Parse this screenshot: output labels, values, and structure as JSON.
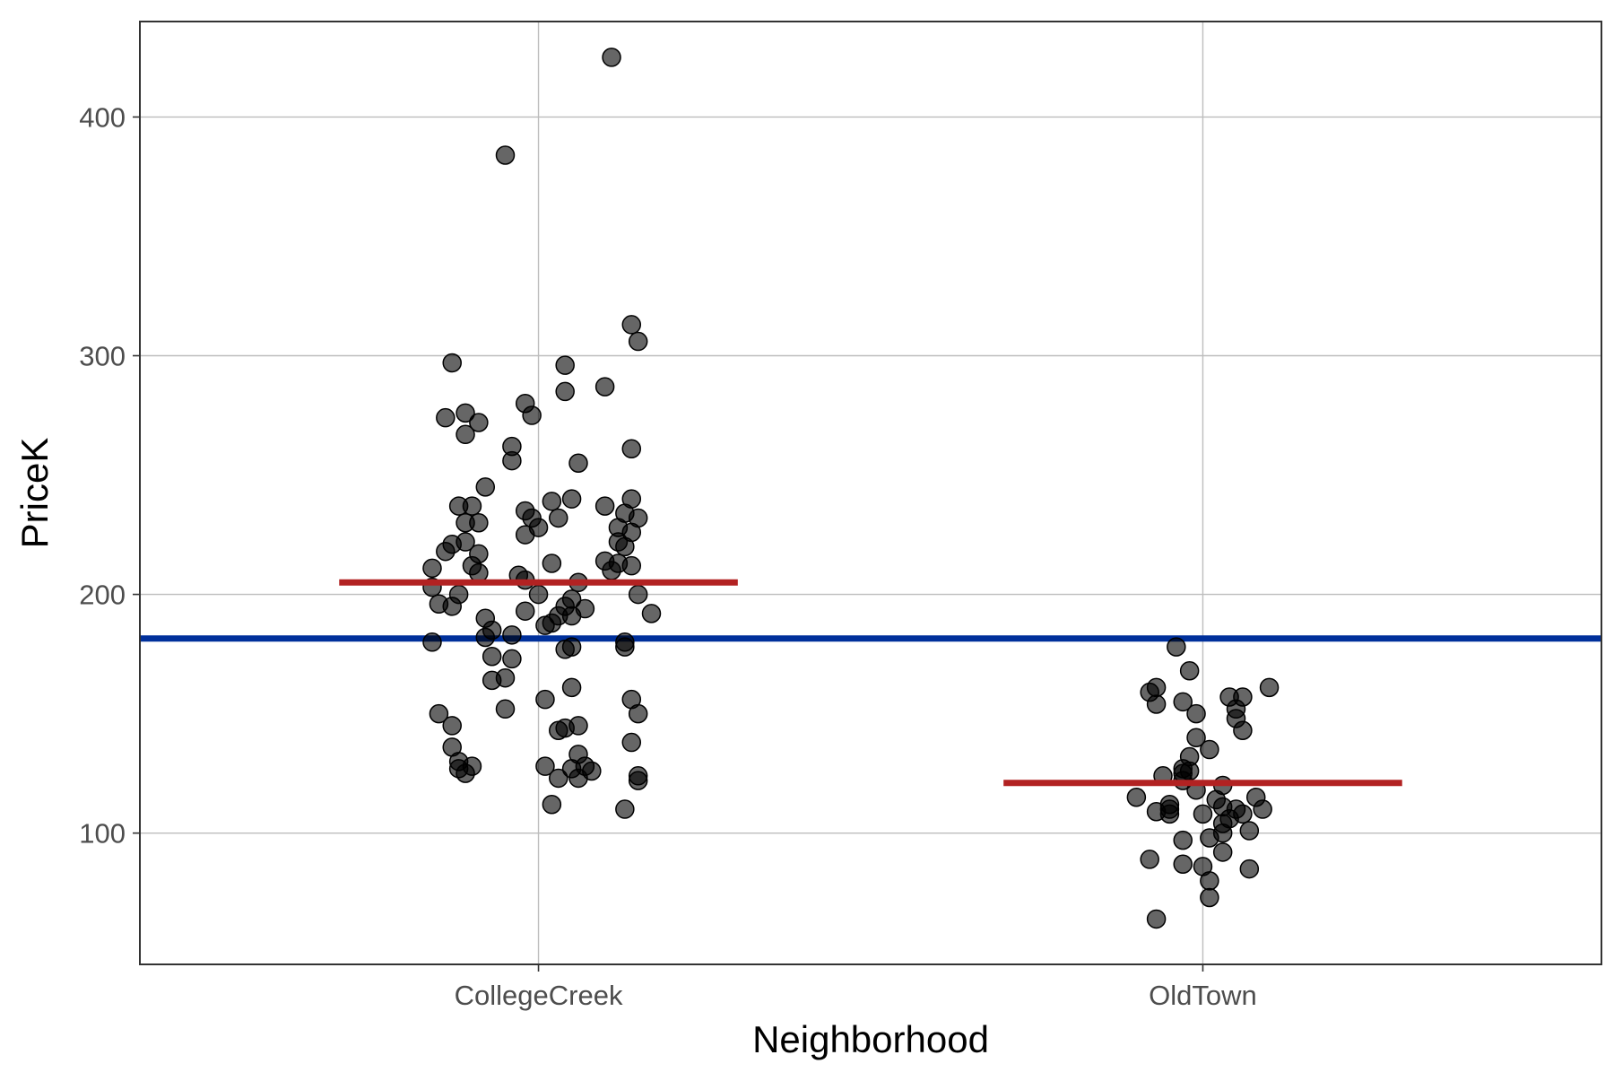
{
  "chart_data": {
    "type": "scatter",
    "title": "",
    "xlabel": "Neighborhood",
    "ylabel": "PriceK",
    "categories": [
      "CollegeCreek",
      "OldTown"
    ],
    "y_ticks": [
      100,
      200,
      300,
      400
    ],
    "ylim": [
      45,
      440
    ],
    "grid": true,
    "legend": "none",
    "colors": {
      "points": "#000000",
      "point_alpha": 0.6,
      "group_mean_line": "#b22222",
      "overall_mean_line": "#00309b",
      "grid": "#bdbdbd",
      "border": "#333333"
    },
    "overall_mean": 181.5,
    "group_means": [
      {
        "category": "CollegeCreek",
        "value": 205
      },
      {
        "category": "OldTown",
        "value": 121
      }
    ],
    "series": [
      {
        "category": "CollegeCreek",
        "points": [
          {
            "x": 0.11,
            "y": 425
          },
          {
            "x": -0.05,
            "y": 384
          },
          {
            "x": 0.14,
            "y": 313
          },
          {
            "x": 0.15,
            "y": 306
          },
          {
            "x": -0.13,
            "y": 297
          },
          {
            "x": 0.04,
            "y": 296
          },
          {
            "x": 0.1,
            "y": 287
          },
          {
            "x": 0.04,
            "y": 285
          },
          {
            "x": -0.02,
            "y": 280
          },
          {
            "x": -0.14,
            "y": 274
          },
          {
            "x": -0.11,
            "y": 276
          },
          {
            "x": -0.09,
            "y": 272
          },
          {
            "x": -0.01,
            "y": 275
          },
          {
            "x": -0.11,
            "y": 267
          },
          {
            "x": -0.04,
            "y": 262
          },
          {
            "x": 0.14,
            "y": 261
          },
          {
            "x": -0.04,
            "y": 256
          },
          {
            "x": 0.06,
            "y": 255
          },
          {
            "x": -0.08,
            "y": 245
          },
          {
            "x": 0.14,
            "y": 240
          },
          {
            "x": 0.02,
            "y": 239
          },
          {
            "x": 0.05,
            "y": 240
          },
          {
            "x": -0.12,
            "y": 237
          },
          {
            "x": -0.1,
            "y": 237
          },
          {
            "x": 0.1,
            "y": 237
          },
          {
            "x": -0.02,
            "y": 235
          },
          {
            "x": 0.13,
            "y": 234
          },
          {
            "x": -0.01,
            "y": 232
          },
          {
            "x": 0.03,
            "y": 232
          },
          {
            "x": 0.15,
            "y": 232
          },
          {
            "x": -0.09,
            "y": 230
          },
          {
            "x": -0.11,
            "y": 230
          },
          {
            "x": 0.0,
            "y": 228
          },
          {
            "x": 0.12,
            "y": 228
          },
          {
            "x": -0.02,
            "y": 225
          },
          {
            "x": 0.14,
            "y": 226
          },
          {
            "x": -0.11,
            "y": 222
          },
          {
            "x": -0.13,
            "y": 221
          },
          {
            "x": 0.12,
            "y": 222
          },
          {
            "x": -0.14,
            "y": 218
          },
          {
            "x": 0.13,
            "y": 220
          },
          {
            "x": -0.09,
            "y": 217
          },
          {
            "x": 0.02,
            "y": 213
          },
          {
            "x": 0.1,
            "y": 214
          },
          {
            "x": -0.1,
            "y": 212
          },
          {
            "x": 0.12,
            "y": 213
          },
          {
            "x": -0.16,
            "y": 211
          },
          {
            "x": 0.14,
            "y": 212
          },
          {
            "x": -0.09,
            "y": 209
          },
          {
            "x": 0.11,
            "y": 210
          },
          {
            "x": -0.03,
            "y": 208
          },
          {
            "x": 0.06,
            "y": 205
          },
          {
            "x": -0.02,
            "y": 206
          },
          {
            "x": -0.16,
            "y": 203
          },
          {
            "x": -0.12,
            "y": 200
          },
          {
            "x": 0.0,
            "y": 200
          },
          {
            "x": 0.15,
            "y": 200
          },
          {
            "x": 0.05,
            "y": 198
          },
          {
            "x": -0.15,
            "y": 196
          },
          {
            "x": -0.13,
            "y": 195
          },
          {
            "x": 0.04,
            "y": 195
          },
          {
            "x": -0.02,
            "y": 193
          },
          {
            "x": 0.07,
            "y": 194
          },
          {
            "x": 0.17,
            "y": 192
          },
          {
            "x": 0.03,
            "y": 191
          },
          {
            "x": 0.05,
            "y": 191
          },
          {
            "x": -0.08,
            "y": 190
          },
          {
            "x": 0.02,
            "y": 188
          },
          {
            "x": 0.01,
            "y": 187
          },
          {
            "x": -0.07,
            "y": 185
          },
          {
            "x": -0.04,
            "y": 183
          },
          {
            "x": -0.08,
            "y": 182
          },
          {
            "x": -0.16,
            "y": 180
          },
          {
            "x": 0.13,
            "y": 180
          },
          {
            "x": 0.13,
            "y": 178
          },
          {
            "x": 0.04,
            "y": 177
          },
          {
            "x": 0.05,
            "y": 178
          },
          {
            "x": -0.07,
            "y": 174
          },
          {
            "x": -0.04,
            "y": 173
          },
          {
            "x": -0.07,
            "y": 164
          },
          {
            "x": -0.05,
            "y": 165
          },
          {
            "x": 0.05,
            "y": 161
          },
          {
            "x": 0.01,
            "y": 156
          },
          {
            "x": 0.14,
            "y": 156
          },
          {
            "x": -0.05,
            "y": 152
          },
          {
            "x": 0.15,
            "y": 150
          },
          {
            "x": -0.15,
            "y": 150
          },
          {
            "x": -0.13,
            "y": 145
          },
          {
            "x": 0.04,
            "y": 144
          },
          {
            "x": 0.06,
            "y": 145
          },
          {
            "x": 0.03,
            "y": 143
          },
          {
            "x": 0.14,
            "y": 138
          },
          {
            "x": -0.13,
            "y": 136
          },
          {
            "x": 0.06,
            "y": 133
          },
          {
            "x": -0.12,
            "y": 130
          },
          {
            "x": -0.12,
            "y": 127
          },
          {
            "x": 0.01,
            "y": 128
          },
          {
            "x": 0.07,
            "y": 128
          },
          {
            "x": -0.1,
            "y": 128
          },
          {
            "x": -0.11,
            "y": 125
          },
          {
            "x": 0.05,
            "y": 127
          },
          {
            "x": 0.08,
            "y": 126
          },
          {
            "x": 0.03,
            "y": 123
          },
          {
            "x": 0.06,
            "y": 123
          },
          {
            "x": 0.15,
            "y": 124
          },
          {
            "x": 0.15,
            "y": 122
          },
          {
            "x": 0.02,
            "y": 112
          },
          {
            "x": 0.13,
            "y": 110
          }
        ]
      },
      {
        "category": "OldTown",
        "points": [
          {
            "x": -0.04,
            "y": 178
          },
          {
            "x": -0.02,
            "y": 168
          },
          {
            "x": -0.07,
            "y": 161
          },
          {
            "x": -0.08,
            "y": 159
          },
          {
            "x": 0.1,
            "y": 161
          },
          {
            "x": 0.04,
            "y": 157
          },
          {
            "x": 0.06,
            "y": 157
          },
          {
            "x": -0.07,
            "y": 154
          },
          {
            "x": -0.03,
            "y": 155
          },
          {
            "x": 0.05,
            "y": 152
          },
          {
            "x": -0.01,
            "y": 150
          },
          {
            "x": 0.05,
            "y": 148
          },
          {
            "x": 0.06,
            "y": 143
          },
          {
            "x": -0.01,
            "y": 140
          },
          {
            "x": 0.01,
            "y": 135
          },
          {
            "x": -0.02,
            "y": 132
          },
          {
            "x": -0.06,
            "y": 124
          },
          {
            "x": -0.03,
            "y": 125
          },
          {
            "x": -0.03,
            "y": 127
          },
          {
            "x": -0.02,
            "y": 126
          },
          {
            "x": -0.03,
            "y": 122
          },
          {
            "x": 0.03,
            "y": 120
          },
          {
            "x": -0.01,
            "y": 118
          },
          {
            "x": -0.1,
            "y": 115
          },
          {
            "x": 0.02,
            "y": 114
          },
          {
            "x": 0.08,
            "y": 115
          },
          {
            "x": -0.05,
            "y": 112
          },
          {
            "x": 0.03,
            "y": 111
          },
          {
            "x": 0.05,
            "y": 110
          },
          {
            "x": -0.05,
            "y": 110
          },
          {
            "x": 0.09,
            "y": 110
          },
          {
            "x": -0.07,
            "y": 109
          },
          {
            "x": -0.05,
            "y": 108
          },
          {
            "x": 0.0,
            "y": 108
          },
          {
            "x": 0.06,
            "y": 108
          },
          {
            "x": 0.04,
            "y": 106
          },
          {
            "x": 0.03,
            "y": 104
          },
          {
            "x": 0.07,
            "y": 101
          },
          {
            "x": 0.03,
            "y": 100
          },
          {
            "x": 0.01,
            "y": 98
          },
          {
            "x": -0.03,
            "y": 97
          },
          {
            "x": 0.03,
            "y": 92
          },
          {
            "x": -0.08,
            "y": 89
          },
          {
            "x": -0.03,
            "y": 87
          },
          {
            "x": 0.0,
            "y": 86
          },
          {
            "x": 0.07,
            "y": 85
          },
          {
            "x": 0.01,
            "y": 80
          },
          {
            "x": 0.01,
            "y": 73
          },
          {
            "x": -0.07,
            "y": 64
          }
        ]
      }
    ]
  }
}
